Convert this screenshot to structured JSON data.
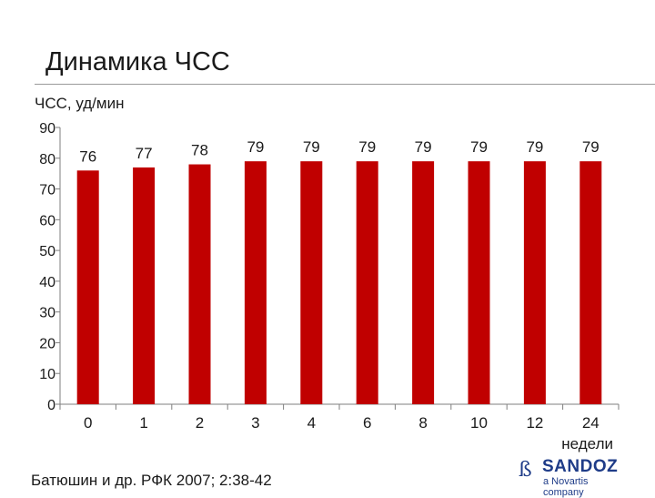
{
  "title": "Динамика ЧСС",
  "source": "Батюшин и др. РФК 2007; 2:38-42",
  "logo": {
    "brand": "SANDOZ",
    "sub": "a Novartis company",
    "mark": "ß"
  },
  "colors": {
    "bar": "#C00000",
    "axis": "#7f7f7f",
    "text": "#1a1a1a",
    "brand": "#1f3c88"
  },
  "chart_data": {
    "type": "bar",
    "categories": [
      "0",
      "1",
      "2",
      "3",
      "4",
      "6",
      "8",
      "10",
      "12",
      "24"
    ],
    "values": [
      76,
      77,
      78,
      79,
      79,
      79,
      79,
      79,
      79,
      79
    ],
    "ylabel": "ЧСС, уд/мин",
    "xlabel": "недели",
    "ylim": [
      0,
      90
    ],
    "yticks": [
      0,
      10,
      20,
      30,
      40,
      50,
      60,
      70,
      80,
      90
    ],
    "grid": false,
    "data_labels": true
  }
}
